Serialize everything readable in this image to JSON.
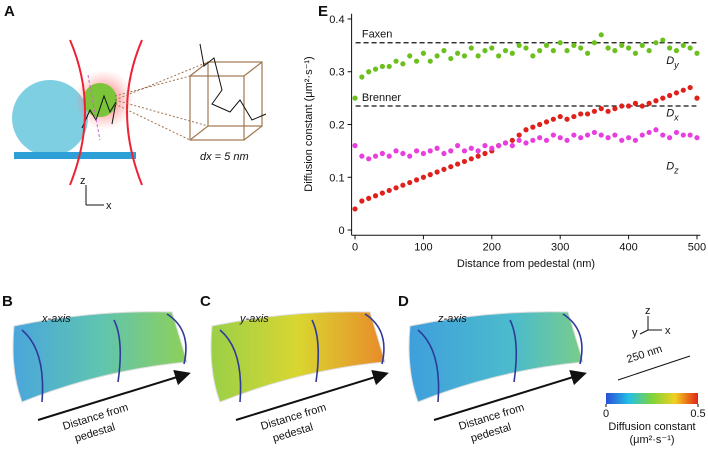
{
  "panel_a": {
    "letter": "A",
    "axis_z": "z",
    "axis_x": "x",
    "scale_label": "dx = 5 nm"
  },
  "panels": [
    {
      "letter": "B",
      "axis_label": "x-axis",
      "arrow_label": [
        "Distance from",
        "pedestal"
      ]
    },
    {
      "letter": "C",
      "axis_label": "y-axis",
      "arrow_label": [
        "Distance from",
        "pedestal"
      ]
    },
    {
      "letter": "D",
      "axis_label": "z-axis",
      "arrow_label": [
        "Distance from",
        "pedestal"
      ]
    }
  ],
  "legend": {
    "axes": {
      "z": "z",
      "y": "y",
      "x": "x"
    },
    "scale_bar": "250 nm",
    "colorbar": {
      "lim": [
        0,
        0.5
      ],
      "ticks": [
        0,
        0.5
      ],
      "label": "Diffusion constant",
      "unit": "(μm²·s⁻¹)"
    }
  },
  "chart_data": {
    "type": "scatter",
    "letter": "E",
    "x_label": "Distance from pedestal (nm)",
    "y_label": "Diffusion constant (μm²·s⁻¹)",
    "x": [
      0,
      10,
      20,
      30,
      40,
      50,
      60,
      70,
      80,
      90,
      100,
      110,
      120,
      130,
      140,
      150,
      160,
      170,
      180,
      190,
      200,
      210,
      220,
      230,
      240,
      250,
      260,
      270,
      280,
      290,
      300,
      310,
      320,
      330,
      340,
      350,
      360,
      370,
      380,
      390,
      400,
      410,
      420,
      430,
      440,
      450,
      460,
      470,
      480,
      490,
      500
    ],
    "series": [
      {
        "name": "Dy",
        "color": "#6cc01e",
        "values": [
          0.25,
          0.29,
          0.3,
          0.305,
          0.31,
          0.31,
          0.32,
          0.315,
          0.33,
          0.32,
          0.335,
          0.32,
          0.33,
          0.34,
          0.325,
          0.335,
          0.33,
          0.345,
          0.33,
          0.34,
          0.345,
          0.33,
          0.34,
          0.335,
          0.35,
          0.345,
          0.33,
          0.34,
          0.35,
          0.34,
          0.355,
          0.34,
          0.35,
          0.345,
          0.335,
          0.355,
          0.37,
          0.345,
          0.34,
          0.35,
          0.345,
          0.335,
          0.35,
          0.34,
          0.355,
          0.36,
          0.345,
          0.34,
          0.35,
          0.345,
          0.335
        ]
      },
      {
        "name": "Dx",
        "color": "#e0201a",
        "values": [
          0.04,
          0.055,
          0.06,
          0.065,
          0.07,
          0.075,
          0.08,
          0.085,
          0.09,
          0.095,
          0.1,
          0.105,
          0.11,
          0.115,
          0.12,
          0.125,
          0.13,
          0.135,
          0.14,
          0.145,
          0.15,
          0.16,
          0.165,
          0.17,
          0.18,
          0.19,
          0.195,
          0.2,
          0.205,
          0.21,
          0.215,
          0.21,
          0.215,
          0.22,
          0.22,
          0.225,
          0.23,
          0.225,
          0.23,
          0.235,
          0.235,
          0.24,
          0.235,
          0.24,
          0.245,
          0.25,
          0.255,
          0.26,
          0.265,
          0.27,
          0.25
        ]
      },
      {
        "name": "Dz",
        "color": "#e83ee0",
        "values": [
          0.16,
          0.14,
          0.135,
          0.14,
          0.145,
          0.14,
          0.15,
          0.145,
          0.14,
          0.15,
          0.145,
          0.15,
          0.155,
          0.145,
          0.15,
          0.16,
          0.15,
          0.155,
          0.15,
          0.16,
          0.155,
          0.16,
          0.165,
          0.16,
          0.17,
          0.165,
          0.17,
          0.175,
          0.17,
          0.18,
          0.175,
          0.17,
          0.18,
          0.175,
          0.18,
          0.185,
          0.18,
          0.175,
          0.18,
          0.17,
          0.175,
          0.17,
          0.18,
          0.185,
          0.19,
          0.18,
          0.175,
          0.185,
          0.18,
          0.18,
          0.175
        ]
      }
    ],
    "xlim": [
      -5,
      505
    ],
    "ylim": [
      -0.01,
      0.41
    ],
    "xticks": [
      0,
      100,
      200,
      300,
      400,
      500
    ],
    "yticks": [
      0,
      0.1,
      0.2,
      0.3,
      0.4
    ],
    "reference_lines": [
      {
        "label": "Faxen",
        "value": 0.355
      },
      {
        "label": "Brenner",
        "value": 0.235
      }
    ]
  }
}
